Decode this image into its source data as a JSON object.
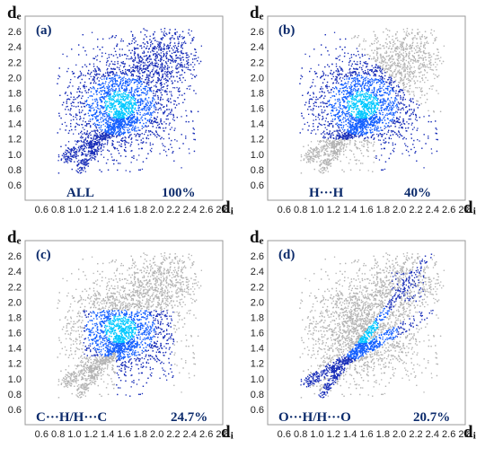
{
  "colors": {
    "background": "#ffffff",
    "frame": "#9a9a9a",
    "points_dense": "#00c8ff",
    "points_mid": "#1560ff",
    "points_sparse": "#1a2fb8",
    "points_gray": "#b4b4b4",
    "label_text": "#0b2a6b"
  },
  "chart_data": [
    {
      "type": "scatter",
      "panel_label": "(a)",
      "interaction": "ALL",
      "percentage": "100%",
      "x_ticks": [
        "0.6",
        "0.8",
        "1.0",
        "1.2",
        "1.4",
        "1.6",
        "1.8",
        "2.0",
        "2.2",
        "2.4",
        "2.6",
        "2.8"
      ],
      "y_ticks": [
        "2.6",
        "2.4",
        "2.2",
        "2.0",
        "1.8",
        "1.6",
        "1.4",
        "1.2",
        "1.0",
        "0.8",
        "0.6"
      ],
      "xlabel": "dᵢ",
      "ylabel": "dₑ",
      "xlim": [
        0.4,
        2.8
      ],
      "ylim": [
        0.4,
        2.8
      ],
      "contribution_percent": 100
    },
    {
      "type": "scatter",
      "panel_label": "(b)",
      "interaction": "H···H",
      "percentage": "40%",
      "x_ticks": [
        "0.6",
        "0.8",
        "1.0",
        "1.2",
        "1.4",
        "1.6",
        "1.8",
        "2.0",
        "2.2",
        "2.4",
        "2.6",
        "2.8"
      ],
      "y_ticks": [
        "2.6",
        "2.4",
        "2.2",
        "2.0",
        "1.8",
        "1.6",
        "1.4",
        "1.2",
        "1.0",
        "0.8",
        "0.6"
      ],
      "xlabel": "dᵢ",
      "ylabel": "dₑ",
      "xlim": [
        0.4,
        2.8
      ],
      "ylim": [
        0.4,
        2.8
      ],
      "contribution_percent": 40
    },
    {
      "type": "scatter",
      "panel_label": "(c)",
      "interaction": "C···H/H···C",
      "percentage": "24.7%",
      "x_ticks": [
        "0.6",
        "0.8",
        "1.0",
        "1.2",
        "1.4",
        "1.6",
        "1.8",
        "2.0",
        "2.2",
        "2.4",
        "2.6",
        "2.8"
      ],
      "y_ticks": [
        "2.6",
        "2.4",
        "2.2",
        "2.0",
        "1.8",
        "1.6",
        "1.4",
        "1.2",
        "1.0",
        "0.8",
        "0.6"
      ],
      "xlabel": "dᵢ",
      "ylabel": "dₑ",
      "xlim": [
        0.4,
        2.8
      ],
      "ylim": [
        0.4,
        2.8
      ],
      "contribution_percent": 24.7
    },
    {
      "type": "scatter",
      "panel_label": "(d)",
      "interaction": "O···H/H···O",
      "percentage": "20.7%",
      "x_ticks": [
        "0.6",
        "0.8",
        "1.0",
        "1.2",
        "1.4",
        "1.6",
        "1.8",
        "2.0",
        "2.2",
        "2.4",
        "2.6",
        "2.8"
      ],
      "y_ticks": [
        "2.6",
        "2.4",
        "2.2",
        "2.0",
        "1.8",
        "1.6",
        "1.4",
        "1.2",
        "1.0",
        "0.8",
        "0.6"
      ],
      "xlabel": "dᵢ",
      "ylabel": "dₑ",
      "xlim": [
        0.4,
        2.8
      ],
      "ylim": [
        0.4,
        2.8
      ],
      "contribution_percent": 20.7
    }
  ]
}
